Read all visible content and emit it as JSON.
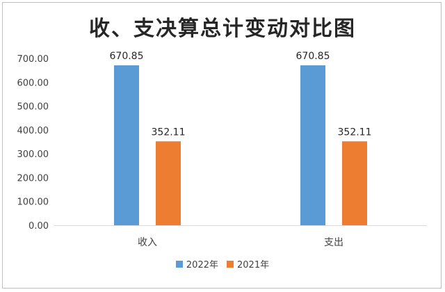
{
  "chart_data": {
    "type": "bar",
    "title": "收、支决算总计变动对比图",
    "categories": [
      "收入",
      "支出"
    ],
    "series": [
      {
        "name": "2022年",
        "values": [
          670.85,
          670.85
        ],
        "labels": [
          "670.85",
          "670.85"
        ],
        "color": "#5b9bd5"
      },
      {
        "name": "2021年",
        "values": [
          352.11,
          352.11
        ],
        "labels": [
          "352.11",
          "352.11"
        ],
        "color": "#ed7d31"
      }
    ],
    "yticks": [
      "0.00",
      "100.00",
      "200.00",
      "300.00",
      "400.00",
      "500.00",
      "600.00",
      "700.00"
    ],
    "ylim": [
      0,
      700
    ],
    "grid": false,
    "legend_position": "bottom"
  }
}
